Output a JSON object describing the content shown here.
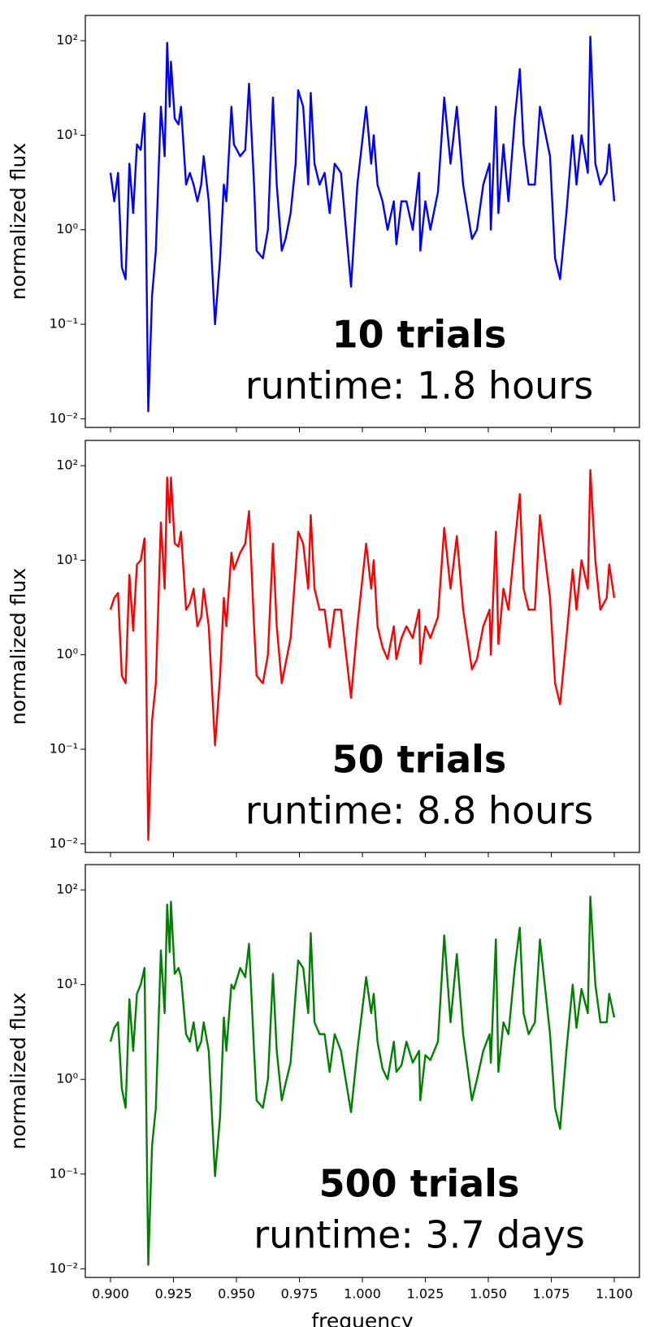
{
  "chart_data": [
    {
      "type": "line",
      "log_y": true,
      "color": "#0000ff",
      "ylabel": "normalized flux",
      "annotations": [
        "10 trials",
        "runtime: 1.8 hours"
      ],
      "xlim": [
        0.89,
        1.11
      ],
      "ylim": [
        0.0081,
        185
      ],
      "xticks": [
        0.9,
        0.925,
        0.95,
        0.975,
        1.0,
        1.025,
        1.05,
        1.075,
        1.1
      ],
      "yticks": [
        {
          "value": 0.01,
          "label": "10⁻²"
        },
        {
          "value": 0.1,
          "label": "10⁻¹"
        },
        {
          "value": 1,
          "label": "10⁰"
        },
        {
          "value": 10,
          "label": "10¹"
        },
        {
          "value": 100,
          "label": "10²"
        }
      ],
      "x": [
        0.9,
        0.9015,
        0.903,
        0.9045,
        0.906,
        0.9075,
        0.909,
        0.9105,
        0.912,
        0.9135,
        0.915,
        0.9165,
        0.918,
        0.92,
        0.9215,
        0.9225,
        0.9235,
        0.924,
        0.9255,
        0.927,
        0.928,
        0.93,
        0.9315,
        0.933,
        0.9345,
        0.936,
        0.937,
        0.939,
        0.9415,
        0.9435,
        0.945,
        0.946,
        0.948,
        0.949,
        0.9515,
        0.9535,
        0.955,
        0.957,
        0.958,
        0.9605,
        0.9625,
        0.9645,
        0.966,
        0.968,
        0.9695,
        0.9715,
        0.9735,
        0.9745,
        0.9765,
        0.9785,
        0.9795,
        0.981,
        0.983,
        0.985,
        0.987,
        0.989,
        0.9915,
        0.9955,
        0.998,
        1.0015,
        1.0035,
        1.0045,
        1.006,
        1.008,
        1.01,
        1.0125,
        1.0135,
        1.0155,
        1.0175,
        1.02,
        1.0225,
        1.023,
        1.025,
        1.027,
        1.03,
        1.0325,
        1.035,
        1.0375,
        1.04,
        1.0435,
        1.0455,
        1.048,
        1.0505,
        1.051,
        1.053,
        1.054,
        1.056,
        1.058,
        1.0605,
        1.0625,
        1.064,
        1.066,
        1.0685,
        1.0705,
        1.0745,
        1.0765,
        1.0785,
        1.081,
        1.0835,
        1.085,
        1.087,
        1.0895,
        1.0905,
        1.0925,
        1.0945,
        1.097,
        1.098,
        1.1
      ],
      "values": [
        4,
        2,
        4,
        0.4,
        0.3,
        5,
        1.5,
        8,
        7,
        17,
        0.012,
        0.2,
        0.6,
        20,
        6,
        95,
        20,
        60,
        15,
        13,
        20,
        3,
        4,
        3,
        2,
        3,
        6,
        2,
        0.1,
        0.5,
        3,
        2,
        20,
        8,
        6,
        7,
        35,
        3,
        0.6,
        0.5,
        1,
        25,
        3,
        0.6,
        0.8,
        1.5,
        5,
        30,
        20,
        3,
        28,
        5,
        3,
        4,
        1.5,
        5,
        4,
        0.25,
        3,
        20,
        5,
        10,
        3,
        2,
        1,
        2,
        0.7,
        2,
        2,
        1,
        4,
        0.6,
        2,
        1,
        2.5,
        25,
        5,
        20,
        3,
        0.8,
        1,
        3,
        5,
        1,
        20,
        1.5,
        8,
        2,
        15,
        50,
        8,
        3,
        3,
        20,
        6,
        0.5,
        0.3,
        1.5,
        10,
        3,
        10,
        4,
        110,
        5,
        3,
        4,
        8,
        2
      ]
    },
    {
      "type": "line",
      "log_y": true,
      "color": "#ff0000",
      "ylabel": "normalized flux",
      "annotations": [
        "50 trials",
        "runtime: 8.8 hours"
      ],
      "xlim": [
        0.89,
        1.11
      ],
      "ylim": [
        0.0081,
        185
      ],
      "xticks": [
        0.9,
        0.925,
        0.95,
        0.975,
        1.0,
        1.025,
        1.05,
        1.075,
        1.1
      ],
      "yticks": [
        {
          "value": 0.01,
          "label": "10⁻²"
        },
        {
          "value": 0.1,
          "label": "10⁻¹"
        },
        {
          "value": 1,
          "label": "10⁰"
        },
        {
          "value": 10,
          "label": "10¹"
        },
        {
          "value": 100,
          "label": "10²"
        }
      ],
      "x": [
        0.9,
        0.9015,
        0.903,
        0.9045,
        0.906,
        0.9075,
        0.909,
        0.9105,
        0.912,
        0.9135,
        0.915,
        0.9165,
        0.918,
        0.92,
        0.9215,
        0.9225,
        0.9235,
        0.924,
        0.9255,
        0.927,
        0.928,
        0.93,
        0.9315,
        0.933,
        0.9345,
        0.936,
        0.937,
        0.939,
        0.9415,
        0.9435,
        0.945,
        0.946,
        0.948,
        0.949,
        0.9515,
        0.9535,
        0.955,
        0.957,
        0.958,
        0.9605,
        0.9625,
        0.9645,
        0.966,
        0.968,
        0.9695,
        0.9715,
        0.9735,
        0.9745,
        0.9765,
        0.9785,
        0.9795,
        0.981,
        0.983,
        0.985,
        0.987,
        0.989,
        0.9915,
        0.9955,
        0.998,
        1.0015,
        1.0035,
        1.0045,
        1.006,
        1.008,
        1.01,
        1.0125,
        1.0135,
        1.0155,
        1.0175,
        1.02,
        1.0225,
        1.023,
        1.025,
        1.027,
        1.03,
        1.0325,
        1.035,
        1.0375,
        1.04,
        1.0435,
        1.0455,
        1.048,
        1.0505,
        1.051,
        1.053,
        1.054,
        1.056,
        1.058,
        1.0605,
        1.0625,
        1.064,
        1.066,
        1.0685,
        1.0705,
        1.0745,
        1.0765,
        1.0785,
        1.081,
        1.0835,
        1.085,
        1.087,
        1.0895,
        1.0905,
        1.0925,
        1.0945,
        1.097,
        1.098,
        1.1
      ],
      "values": [
        3,
        4,
        4.5,
        0.6,
        0.5,
        7,
        1.8,
        9,
        10,
        17,
        0.011,
        0.2,
        0.5,
        25,
        5,
        75,
        25,
        75,
        15,
        14,
        20,
        3,
        3.5,
        5,
        2,
        2.5,
        5,
        2,
        0.11,
        0.6,
        4,
        2,
        12,
        8,
        12,
        15,
        33,
        2,
        0.6,
        0.5,
        1,
        15,
        2,
        0.5,
        0.8,
        1.5,
        8,
        20,
        15,
        5,
        30,
        5,
        3,
        3,
        1.2,
        3,
        3,
        0.35,
        2,
        15,
        5,
        10,
        2,
        1.2,
        0.9,
        2,
        0.9,
        1.5,
        2,
        1.5,
        3,
        0.8,
        2,
        1.5,
        2.5,
        22,
        5,
        18,
        3,
        0.7,
        0.9,
        2,
        3,
        1,
        20,
        1.3,
        5,
        3,
        15,
        50,
        5,
        3,
        3,
        30,
        4,
        0.5,
        0.3,
        1.5,
        8,
        3,
        10,
        5,
        90,
        10,
        3,
        4,
        9,
        4
      ]
    },
    {
      "type": "line",
      "log_y": true,
      "color": "#008000",
      "ylabel": "normalized flux",
      "xlabel": "frequency",
      "annotations": [
        "500 trials",
        "runtime: 3.7 days"
      ],
      "xlim": [
        0.89,
        1.11
      ],
      "ylim": [
        0.0081,
        185
      ],
      "xticks": [
        {
          "value": 0.9,
          "label": "0.900"
        },
        {
          "value": 0.925,
          "label": "0.925"
        },
        {
          "value": 0.95,
          "label": "0.950"
        },
        {
          "value": 0.975,
          "label": "0.975"
        },
        {
          "value": 1.0,
          "label": "1.000"
        },
        {
          "value": 1.025,
          "label": "1.025"
        },
        {
          "value": 1.05,
          "label": "1.050"
        },
        {
          "value": 1.075,
          "label": "1.075"
        },
        {
          "value": 1.1,
          "label": "1.100"
        }
      ],
      "yticks": [
        {
          "value": 0.01,
          "label": "10⁻²"
        },
        {
          "value": 0.1,
          "label": "10⁻¹"
        },
        {
          "value": 1,
          "label": "10⁰"
        },
        {
          "value": 10,
          "label": "10¹"
        },
        {
          "value": 100,
          "label": "10²"
        }
      ],
      "x": [
        0.9,
        0.9015,
        0.903,
        0.9045,
        0.906,
        0.9075,
        0.909,
        0.9105,
        0.912,
        0.9135,
        0.915,
        0.9165,
        0.918,
        0.92,
        0.9215,
        0.9225,
        0.9235,
        0.924,
        0.9255,
        0.927,
        0.928,
        0.93,
        0.9315,
        0.933,
        0.9345,
        0.936,
        0.937,
        0.939,
        0.9415,
        0.9435,
        0.945,
        0.946,
        0.948,
        0.949,
        0.9515,
        0.9535,
        0.955,
        0.957,
        0.958,
        0.9605,
        0.9625,
        0.9645,
        0.966,
        0.968,
        0.9695,
        0.9715,
        0.9735,
        0.9745,
        0.9765,
        0.9785,
        0.9795,
        0.981,
        0.983,
        0.985,
        0.987,
        0.989,
        0.9915,
        0.9955,
        0.998,
        1.0015,
        1.0035,
        1.0045,
        1.006,
        1.008,
        1.01,
        1.0125,
        1.0135,
        1.0155,
        1.0175,
        1.02,
        1.0225,
        1.023,
        1.025,
        1.027,
        1.03,
        1.0325,
        1.035,
        1.0375,
        1.04,
        1.0435,
        1.0455,
        1.048,
        1.0505,
        1.051,
        1.053,
        1.054,
        1.056,
        1.058,
        1.0605,
        1.0625,
        1.064,
        1.066,
        1.0685,
        1.0705,
        1.0745,
        1.0765,
        1.0785,
        1.081,
        1.0835,
        1.085,
        1.087,
        1.0895,
        1.0905,
        1.0925,
        1.0945,
        1.097,
        1.098,
        1.1
      ],
      "values": [
        2.5,
        3.5,
        4,
        0.8,
        0.5,
        7,
        2,
        8,
        10,
        15,
        0.011,
        0.2,
        0.5,
        23,
        5,
        70,
        22,
        75,
        13,
        15,
        12,
        3,
        2.5,
        4,
        2,
        2.5,
        4,
        2,
        0.095,
        0.4,
        4.5,
        2,
        10,
        9,
        15,
        12,
        27,
        2,
        0.6,
        0.5,
        1,
        13,
        2,
        0.6,
        0.9,
        1.5,
        8,
        18,
        15,
        5,
        35,
        4,
        3,
        3,
        1.2,
        3,
        2,
        0.45,
        2,
        12,
        5,
        8,
        2.5,
        1.3,
        1,
        2.5,
        1.2,
        1.4,
        2.5,
        1.5,
        2,
        0.6,
        1.8,
        1.6,
        2.5,
        33,
        4,
        21,
        3,
        0.6,
        1,
        2,
        3,
        1.5,
        30,
        1.2,
        4,
        3,
        15,
        40,
        5,
        3,
        4,
        30,
        3,
        0.5,
        0.3,
        2,
        10,
        3.5,
        9,
        5,
        85,
        10,
        4,
        4,
        8,
        4.5
      ]
    }
  ]
}
